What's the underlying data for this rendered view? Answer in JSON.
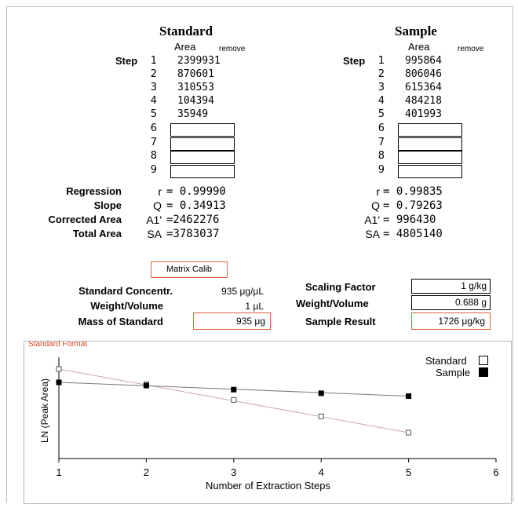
{
  "standard": {
    "title": "Standard",
    "area_header": "Area",
    "remove_label": "remove",
    "step_label": "Step",
    "steps": [
      {
        "n": "1",
        "value": "2399931"
      },
      {
        "n": "2",
        "value": "870601"
      },
      {
        "n": "3",
        "value": "310553"
      },
      {
        "n": "4",
        "value": "104394"
      },
      {
        "n": "5",
        "value": "35949"
      },
      {
        "n": "6",
        "value": ""
      },
      {
        "n": "7",
        "value": ""
      },
      {
        "n": "8",
        "value": ""
      },
      {
        "n": "9",
        "value": ""
      }
    ],
    "stats": [
      {
        "label": "Regression",
        "sym": "r",
        "value": "= 0.99990"
      },
      {
        "label": "Slope",
        "sym": "Q",
        "value": "= 0.34913"
      },
      {
        "label": "Corrected Area",
        "sym": "A1'",
        "value": "=2462276"
      },
      {
        "label": "Total Area",
        "sym": "SA",
        "value": "=3783037"
      }
    ]
  },
  "sample": {
    "title": "Sample",
    "area_header": "Area",
    "remove_label": "remove",
    "step_label": "Step",
    "steps": [
      {
        "n": "1",
        "value": "995864"
      },
      {
        "n": "2",
        "value": "806046"
      },
      {
        "n": "3",
        "value": "615364"
      },
      {
        "n": "4",
        "value": "484218"
      },
      {
        "n": "5",
        "value": "401993"
      },
      {
        "n": "6",
        "value": ""
      },
      {
        "n": "7",
        "value": ""
      },
      {
        "n": "8",
        "value": ""
      },
      {
        "n": "9",
        "value": ""
      }
    ],
    "stats": [
      {
        "sym": "r",
        "value": "=  0.99835"
      },
      {
        "sym": "Q",
        "value": "=  0.79263"
      },
      {
        "sym": "A1'",
        "value": "=  996430"
      },
      {
        "sym": "SA",
        "value": "= 4805140"
      }
    ]
  },
  "matrix_button": "Matrix  Calib",
  "params": {
    "std_conc_label": "Standard Concentr.",
    "std_conc_value": "935 μg/μL",
    "std_wv_label": "Weight/Volume",
    "std_wv_value": "1 μL",
    "mass_label": "Mass of Standard",
    "mass_value": "935  μg",
    "scaling_label": "Scaling Factor",
    "scaling_value": "1 g/kg",
    "smp_wv_label": "Weight/Volume",
    "smp_wv_value": "0.688 g",
    "result_label": "Sample Result",
    "result_value": "1726  μg/kg"
  },
  "format_label": "Standard Format",
  "chart_data": {
    "type": "line",
    "xlabel": "Number of Extraction Steps",
    "ylabel": "LN (Peak Area)",
    "xlim": [
      1,
      6
    ],
    "x_ticks": [
      "1",
      "2",
      "3",
      "4",
      "5",
      "6"
    ],
    "legend_placement": "top-right",
    "grid": false,
    "series": [
      {
        "name": "Standard",
        "marker": "open-square",
        "x": [
          1,
          2,
          3,
          4,
          5
        ],
        "y": [
          14.69,
          13.68,
          12.65,
          11.56,
          10.49
        ],
        "fit": [
          14.66,
          13.69
        ]
      },
      {
        "name": "Sample",
        "marker": "filled-square",
        "x": [
          1,
          2,
          3,
          4,
          5
        ],
        "y": [
          13.81,
          13.6,
          13.33,
          13.09,
          12.9
        ],
        "fit": [
          13.75,
          12.96
        ]
      }
    ]
  },
  "colors": {
    "accent_red": "#e0451e",
    "box_red": "#e0603c",
    "chart_border": "#b5b5b5",
    "fit_line": "#c8a8a8"
  }
}
